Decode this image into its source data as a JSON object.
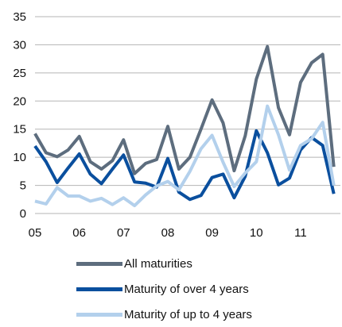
{
  "chart_data": {
    "type": "line",
    "title": "",
    "xlabel": "",
    "ylabel": "",
    "ylim": [
      0,
      35
    ],
    "yticks": [
      0,
      5,
      10,
      15,
      20,
      25,
      30,
      35
    ],
    "xlim": [
      2005.0,
      2011.9
    ],
    "xticks": [
      {
        "label": "05",
        "value": 2005
      },
      {
        "label": "06",
        "value": 2006
      },
      {
        "label": "07",
        "value": 2007
      },
      {
        "label": "08",
        "value": 2008
      },
      {
        "label": "09",
        "value": 2009
      },
      {
        "label": "10",
        "value": 2010
      },
      {
        "label": "11",
        "value": 2011
      }
    ],
    "grid": "horizontal",
    "legend": "bottom",
    "x": [
      2005.0,
      2005.25,
      2005.5,
      2005.75,
      2006.0,
      2006.25,
      2006.5,
      2006.75,
      2007.0,
      2007.25,
      2007.5,
      2007.75,
      2008.0,
      2008.25,
      2008.5,
      2008.75,
      2009.0,
      2009.25,
      2009.5,
      2009.75,
      2010.0,
      2010.25,
      2010.5,
      2010.75,
      2011.0,
      2011.25,
      2011.5,
      2011.75
    ],
    "series": [
      {
        "name": "All maturities",
        "color": "#5d6d7e",
        "values": [
          14.2,
          10.8,
          10.1,
          11.3,
          13.7,
          9.2,
          7.9,
          9.4,
          13.1,
          7.1,
          8.9,
          9.6,
          15.5,
          7.9,
          10.0,
          15.0,
          20.2,
          16.1,
          7.6,
          13.8,
          23.9,
          29.7,
          18.8,
          14.0,
          23.3,
          26.8,
          28.3,
          8.3
        ]
      },
      {
        "name": "Maturity of over 4 years",
        "color": "#0a4f9e",
        "values": [
          12.0,
          9.2,
          5.5,
          8.1,
          10.6,
          7.0,
          5.3,
          7.9,
          10.4,
          5.6,
          5.4,
          4.7,
          9.8,
          3.8,
          2.5,
          3.2,
          6.4,
          7.0,
          2.8,
          6.6,
          14.7,
          10.8,
          5.1,
          6.3,
          11.3,
          13.5,
          12.1,
          3.5
        ]
      },
      {
        "name": "Maturity of up to 4 years",
        "color": "#b3d0ec",
        "values": [
          2.2,
          1.7,
          4.6,
          3.1,
          3.1,
          2.2,
          2.7,
          1.6,
          2.8,
          1.4,
          3.3,
          4.9,
          5.7,
          4.2,
          7.5,
          11.5,
          13.9,
          9.1,
          4.8,
          7.2,
          9.2,
          19.1,
          14.0,
          7.7,
          12.1,
          13.3,
          16.2,
          5.0
        ]
      }
    ]
  }
}
